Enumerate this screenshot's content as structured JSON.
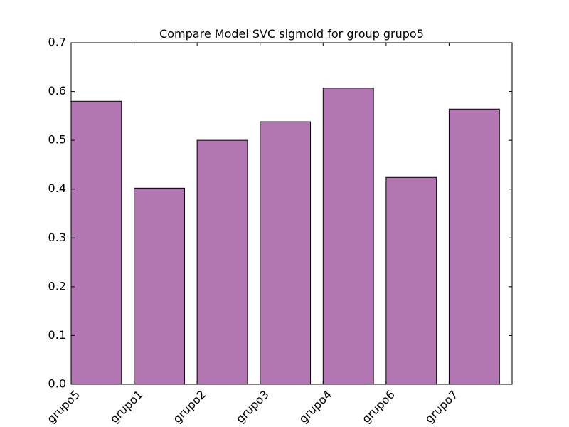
{
  "chart_data": {
    "type": "bar",
    "title": "Compare Model SVC sigmoid for group grupo5",
    "xlabel": "",
    "ylabel": "",
    "categories": [
      "grupo5",
      "grupo1",
      "grupo2",
      "grupo3",
      "grupo4",
      "grupo6",
      "grupo7"
    ],
    "values": [
      0.58,
      0.402,
      0.5,
      0.538,
      0.607,
      0.424,
      0.564
    ],
    "ylim": [
      0,
      0.7
    ],
    "yticks": [
      "0.0",
      "0.1",
      "0.2",
      "0.3",
      "0.4",
      "0.5",
      "0.6",
      "0.7"
    ],
    "bar_color": "#b276b2",
    "edge_color": "#000000",
    "grid": false,
    "legend": "none"
  }
}
